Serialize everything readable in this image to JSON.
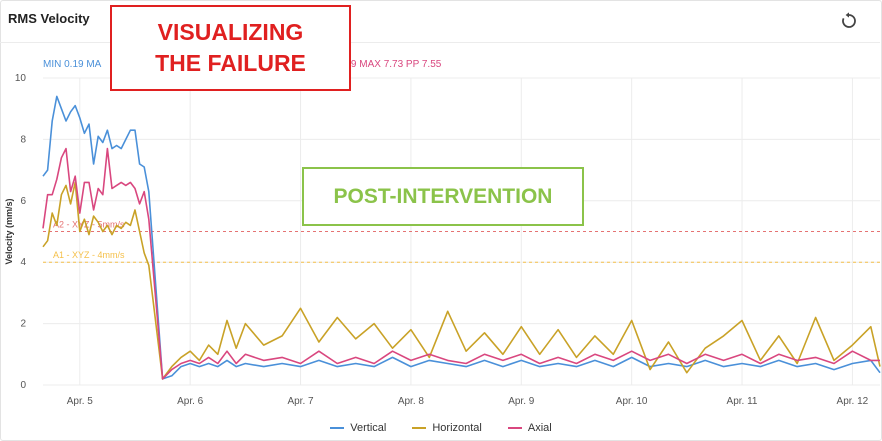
{
  "header": {
    "title": "RMS Velocity",
    "reset_icon": "reset-icon"
  },
  "stats": {
    "vertical_text": "MIN 0.19 MA",
    "axial_text": "0.19 MAX 7.73 PP 7.55"
  },
  "annotations": {
    "failure_line1": "VISUALIZING",
    "failure_line2": "THE FAILURE",
    "post_intervention": "POST-INTERVENTION"
  },
  "colors": {
    "vertical": "#4a90d9",
    "horizontal": "#c9a227",
    "axial": "#d9477f",
    "alarm2": "#e57373",
    "alarm1": "#f5c04a",
    "annotation_red": "#e02020",
    "annotation_green": "#8bc34a"
  },
  "chart_data": {
    "type": "line",
    "ylabel": "Velocity (mm/s)",
    "xlabel": "",
    "ylim": [
      0,
      10
    ],
    "yticks": [
      "0",
      "2",
      "4",
      "6",
      "8",
      "10"
    ],
    "xlim": [
      "Apr. 4 16:00",
      "Apr. 12 06:00"
    ],
    "xticks": [
      {
        "label": "Apr. 5",
        "date": "Apr. 5"
      },
      {
        "label": "Apr. 6",
        "date": "Apr. 6"
      },
      {
        "label": "Apr. 7",
        "date": "Apr. 7"
      },
      {
        "label": "Apr. 8",
        "date": "Apr. 8"
      },
      {
        "label": "Apr. 9",
        "date": "Apr. 9"
      },
      {
        "label": "Apr. 10",
        "date": "Apr. 10"
      },
      {
        "label": "Apr. 11",
        "date": "Apr. 11"
      },
      {
        "label": "Apr. 12",
        "date": "Apr. 12"
      }
    ],
    "grid": true,
    "legend": "bottom",
    "thresholds": [
      {
        "label": "A2 - XYZ - 5mm/s",
        "value": 5
      },
      {
        "label": "A1 - XYZ - 4mm/s",
        "value": 4
      }
    ],
    "series": [
      {
        "name": "Vertical",
        "points": [
          [
            "Apr. 4 16:00",
            6.8
          ],
          [
            "Apr. 4 17:00",
            7.0
          ],
          [
            "Apr. 4 18:00",
            8.6
          ],
          [
            "Apr. 4 19:00",
            9.4
          ],
          [
            "Apr. 4 20:00",
            9.0
          ],
          [
            "Apr. 4 21:00",
            8.6
          ],
          [
            "Apr. 4 22:00",
            8.9
          ],
          [
            "Apr. 4 23:00",
            9.1
          ],
          [
            "Apr. 5 00:00",
            8.7
          ],
          [
            "Apr. 5 01:00",
            8.2
          ],
          [
            "Apr. 5 02:00",
            8.5
          ],
          [
            "Apr. 5 03:00",
            7.2
          ],
          [
            "Apr. 5 04:00",
            8.1
          ],
          [
            "Apr. 5 05:00",
            7.9
          ],
          [
            "Apr. 5 06:00",
            8.3
          ],
          [
            "Apr. 5 07:00",
            7.7
          ],
          [
            "Apr. 5 08:00",
            7.8
          ],
          [
            "Apr. 5 09:00",
            7.7
          ],
          [
            "Apr. 5 10:00",
            8.0
          ],
          [
            "Apr. 5 11:00",
            8.3
          ],
          [
            "Apr. 5 12:00",
            8.3
          ],
          [
            "Apr. 5 13:00",
            7.2
          ],
          [
            "Apr. 5 14:00",
            7.1
          ],
          [
            "Apr. 5 15:00",
            6.3
          ],
          [
            "Apr. 5 18:00",
            0.2
          ],
          [
            "Apr. 5 20:00",
            0.3
          ],
          [
            "Apr. 5 22:00",
            0.6
          ],
          [
            "Apr. 6 00:00",
            0.7
          ],
          [
            "Apr. 6 02:00",
            0.6
          ],
          [
            "Apr. 6 04:00",
            0.7
          ],
          [
            "Apr. 6 06:00",
            0.6
          ],
          [
            "Apr. 6 08:00",
            0.8
          ],
          [
            "Apr. 6 10:00",
            0.6
          ],
          [
            "Apr. 6 12:00",
            0.7
          ],
          [
            "Apr. 6 16:00",
            0.6
          ],
          [
            "Apr. 6 20:00",
            0.7
          ],
          [
            "Apr. 7 00:00",
            0.6
          ],
          [
            "Apr. 7 04:00",
            0.8
          ],
          [
            "Apr. 7 08:00",
            0.6
          ],
          [
            "Apr. 7 12:00",
            0.7
          ],
          [
            "Apr. 7 16:00",
            0.6
          ],
          [
            "Apr. 7 20:00",
            0.9
          ],
          [
            "Apr. 8 00:00",
            0.6
          ],
          [
            "Apr. 8 04:00",
            0.8
          ],
          [
            "Apr. 8 08:00",
            0.7
          ],
          [
            "Apr. 8 12:00",
            0.6
          ],
          [
            "Apr. 8 16:00",
            0.8
          ],
          [
            "Apr. 8 20:00",
            0.6
          ],
          [
            "Apr. 9 00:00",
            0.8
          ],
          [
            "Apr. 9 04:00",
            0.6
          ],
          [
            "Apr. 9 08:00",
            0.7
          ],
          [
            "Apr. 9 12:00",
            0.6
          ],
          [
            "Apr. 9 16:00",
            0.8
          ],
          [
            "Apr. 9 20:00",
            0.6
          ],
          [
            "Apr. 10 00:00",
            0.9
          ],
          [
            "Apr. 10 04:00",
            0.6
          ],
          [
            "Apr. 10 08:00",
            0.7
          ],
          [
            "Apr. 10 12:00",
            0.6
          ],
          [
            "Apr. 10 16:00",
            0.8
          ],
          [
            "Apr. 10 20:00",
            0.6
          ],
          [
            "Apr. 11 00:00",
            0.7
          ],
          [
            "Apr. 11 04:00",
            0.6
          ],
          [
            "Apr. 11 08:00",
            0.8
          ],
          [
            "Apr. 11 12:00",
            0.6
          ],
          [
            "Apr. 11 16:00",
            0.7
          ],
          [
            "Apr. 11 20:00",
            0.5
          ],
          [
            "Apr. 12 00:00",
            0.7
          ],
          [
            "Apr. 12 04:00",
            0.8
          ],
          [
            "Apr. 12 06:00",
            0.4
          ]
        ]
      },
      {
        "name": "Horizontal",
        "points": [
          [
            "Apr. 4 16:00",
            4.5
          ],
          [
            "Apr. 4 17:00",
            4.7
          ],
          [
            "Apr. 4 18:00",
            5.6
          ],
          [
            "Apr. 4 19:00",
            5.2
          ],
          [
            "Apr. 4 20:00",
            6.2
          ],
          [
            "Apr. 4 21:00",
            6.5
          ],
          [
            "Apr. 4 22:00",
            5.9
          ],
          [
            "Apr. 4 23:00",
            6.6
          ],
          [
            "Apr. 5 00:00",
            5.0
          ],
          [
            "Apr. 5 01:00",
            5.4
          ],
          [
            "Apr. 5 02:00",
            4.9
          ],
          [
            "Apr. 5 03:00",
            5.5
          ],
          [
            "Apr. 5 04:00",
            5.3
          ],
          [
            "Apr. 5 05:00",
            5.0
          ],
          [
            "Apr. 5 06:00",
            5.2
          ],
          [
            "Apr. 5 07:00",
            4.9
          ],
          [
            "Apr. 5 08:00",
            5.2
          ],
          [
            "Apr. 5 09:00",
            5.1
          ],
          [
            "Apr. 5 10:00",
            5.3
          ],
          [
            "Apr. 5 11:00",
            5.2
          ],
          [
            "Apr. 5 12:00",
            5.7
          ],
          [
            "Apr. 5 13:00",
            5.0
          ],
          [
            "Apr. 5 14:00",
            4.3
          ],
          [
            "Apr. 5 15:00",
            3.9
          ],
          [
            "Apr. 5 18:00",
            0.2
          ],
          [
            "Apr. 5 20:00",
            0.6
          ],
          [
            "Apr. 5 22:00",
            0.9
          ],
          [
            "Apr. 6 00:00",
            1.1
          ],
          [
            "Apr. 6 02:00",
            0.8
          ],
          [
            "Apr. 6 04:00",
            1.3
          ],
          [
            "Apr. 6 06:00",
            1.0
          ],
          [
            "Apr. 6 08:00",
            2.1
          ],
          [
            "Apr. 6 10:00",
            1.2
          ],
          [
            "Apr. 6 12:00",
            2.0
          ],
          [
            "Apr. 6 16:00",
            1.3
          ],
          [
            "Apr. 6 20:00",
            1.6
          ],
          [
            "Apr. 7 00:00",
            2.5
          ],
          [
            "Apr. 7 04:00",
            1.4
          ],
          [
            "Apr. 7 08:00",
            2.2
          ],
          [
            "Apr. 7 12:00",
            1.5
          ],
          [
            "Apr. 7 16:00",
            2.0
          ],
          [
            "Apr. 7 20:00",
            1.2
          ],
          [
            "Apr. 8 00:00",
            1.8
          ],
          [
            "Apr. 8 04:00",
            0.9
          ],
          [
            "Apr. 8 08:00",
            2.4
          ],
          [
            "Apr. 8 12:00",
            1.1
          ],
          [
            "Apr. 8 16:00",
            1.7
          ],
          [
            "Apr. 8 20:00",
            1.0
          ],
          [
            "Apr. 9 00:00",
            1.9
          ],
          [
            "Apr. 9 04:00",
            1.0
          ],
          [
            "Apr. 9 08:00",
            1.8
          ],
          [
            "Apr. 9 12:00",
            0.9
          ],
          [
            "Apr. 9 16:00",
            1.6
          ],
          [
            "Apr. 9 20:00",
            1.0
          ],
          [
            "Apr. 10 00:00",
            2.1
          ],
          [
            "Apr. 10 04:00",
            0.5
          ],
          [
            "Apr. 10 08:00",
            1.4
          ],
          [
            "Apr. 10 12:00",
            0.4
          ],
          [
            "Apr. 10 16:00",
            1.2
          ],
          [
            "Apr. 10 20:00",
            1.6
          ],
          [
            "Apr. 11 00:00",
            2.1
          ],
          [
            "Apr. 11 04:00",
            0.8
          ],
          [
            "Apr. 11 08:00",
            1.6
          ],
          [
            "Apr. 11 12:00",
            0.7
          ],
          [
            "Apr. 11 16:00",
            2.2
          ],
          [
            "Apr. 11 20:00",
            0.8
          ],
          [
            "Apr. 12 00:00",
            1.3
          ],
          [
            "Apr. 12 04:00",
            1.9
          ],
          [
            "Apr. 12 06:00",
            0.6
          ]
        ]
      },
      {
        "name": "Axial",
        "points": [
          [
            "Apr. 4 16:00",
            5.1
          ],
          [
            "Apr. 4 17:00",
            6.2
          ],
          [
            "Apr. 4 18:00",
            6.2
          ],
          [
            "Apr. 4 19:00",
            6.7
          ],
          [
            "Apr. 4 20:00",
            7.4
          ],
          [
            "Apr. 4 21:00",
            7.7
          ],
          [
            "Apr. 4 22:00",
            6.3
          ],
          [
            "Apr. 4 23:00",
            6.8
          ],
          [
            "Apr. 5 00:00",
            5.6
          ],
          [
            "Apr. 5 01:00",
            6.6
          ],
          [
            "Apr. 5 02:00",
            6.6
          ],
          [
            "Apr. 5 03:00",
            5.7
          ],
          [
            "Apr. 5 04:00",
            6.4
          ],
          [
            "Apr. 5 05:00",
            6.2
          ],
          [
            "Apr. 5 06:00",
            7.7
          ],
          [
            "Apr. 5 07:00",
            6.4
          ],
          [
            "Apr. 5 08:00",
            6.5
          ],
          [
            "Apr. 5 09:00",
            6.6
          ],
          [
            "Apr. 5 10:00",
            6.5
          ],
          [
            "Apr. 5 11:00",
            6.6
          ],
          [
            "Apr. 5 12:00",
            6.4
          ],
          [
            "Apr. 5 13:00",
            5.9
          ],
          [
            "Apr. 5 14:00",
            6.3
          ],
          [
            "Apr. 5 15:00",
            5.4
          ],
          [
            "Apr. 5 18:00",
            0.2
          ],
          [
            "Apr. 5 20:00",
            0.5
          ],
          [
            "Apr. 5 22:00",
            0.7
          ],
          [
            "Apr. 6 00:00",
            0.8
          ],
          [
            "Apr. 6 02:00",
            0.7
          ],
          [
            "Apr. 6 04:00",
            0.9
          ],
          [
            "Apr. 6 06:00",
            0.7
          ],
          [
            "Apr. 6 08:00",
            1.1
          ],
          [
            "Apr. 6 10:00",
            0.7
          ],
          [
            "Apr. 6 12:00",
            1.0
          ],
          [
            "Apr. 6 16:00",
            0.8
          ],
          [
            "Apr. 6 20:00",
            0.9
          ],
          [
            "Apr. 7 00:00",
            0.7
          ],
          [
            "Apr. 7 04:00",
            1.1
          ],
          [
            "Apr. 7 08:00",
            0.7
          ],
          [
            "Apr. 7 12:00",
            0.9
          ],
          [
            "Apr. 7 16:00",
            0.7
          ],
          [
            "Apr. 7 20:00",
            1.1
          ],
          [
            "Apr. 8 00:00",
            0.8
          ],
          [
            "Apr. 8 04:00",
            1.0
          ],
          [
            "Apr. 8 08:00",
            0.8
          ],
          [
            "Apr. 8 12:00",
            0.7
          ],
          [
            "Apr. 8 16:00",
            1.0
          ],
          [
            "Apr. 8 20:00",
            0.8
          ],
          [
            "Apr. 9 00:00",
            1.0
          ],
          [
            "Apr. 9 04:00",
            0.7
          ],
          [
            "Apr. 9 08:00",
            0.9
          ],
          [
            "Apr. 9 12:00",
            0.7
          ],
          [
            "Apr. 9 16:00",
            1.0
          ],
          [
            "Apr. 9 20:00",
            0.8
          ],
          [
            "Apr. 10 00:00",
            1.1
          ],
          [
            "Apr. 10 04:00",
            0.8
          ],
          [
            "Apr. 10 08:00",
            1.0
          ],
          [
            "Apr. 10 12:00",
            0.7
          ],
          [
            "Apr. 10 16:00",
            1.0
          ],
          [
            "Apr. 10 20:00",
            0.8
          ],
          [
            "Apr. 11 00:00",
            1.0
          ],
          [
            "Apr. 11 04:00",
            0.7
          ],
          [
            "Apr. 11 08:00",
            1.0
          ],
          [
            "Apr. 11 12:00",
            0.8
          ],
          [
            "Apr. 11 16:00",
            0.9
          ],
          [
            "Apr. 11 20:00",
            0.7
          ],
          [
            "Apr. 12 00:00",
            1.1
          ],
          [
            "Apr. 12 04:00",
            0.8
          ],
          [
            "Apr. 12 06:00",
            0.8
          ]
        ]
      }
    ]
  }
}
